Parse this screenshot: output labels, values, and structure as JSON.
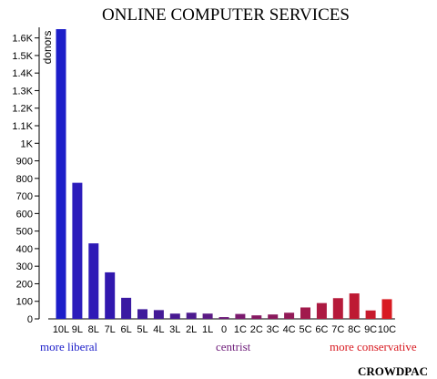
{
  "chart_data": {
    "type": "bar",
    "title": "ONLINE COMPUTER SERVICES",
    "ylabel": "donors",
    "xlabel": "",
    "ylim": [
      0,
      1650
    ],
    "y_ticks": [
      0,
      100,
      200,
      300,
      400,
      500,
      600,
      700,
      800,
      900,
      1000,
      1100,
      1200,
      1300,
      1400,
      1500,
      1600
    ],
    "y_tick_labels": [
      "0",
      "100",
      "200",
      "300",
      "400",
      "500",
      "600",
      "700",
      "800",
      "900",
      "1K",
      "1.1K",
      "1.2K",
      "1.3K",
      "1.4K",
      "1.5K",
      "1.6K"
    ],
    "categories": [
      "10L",
      "9L",
      "8L",
      "7L",
      "6L",
      "5L",
      "4L",
      "3L",
      "2L",
      "1L",
      "0",
      "1C",
      "2C",
      "3C",
      "4C",
      "5C",
      "6C",
      "7C",
      "8C",
      "9C",
      "10C"
    ],
    "values": [
      1650,
      775,
      430,
      265,
      120,
      55,
      50,
      30,
      35,
      30,
      10,
      28,
      20,
      25,
      35,
      65,
      90,
      118,
      145,
      48,
      112
    ],
    "colors": [
      "#1c1ec9",
      "#2c1cbb",
      "#2e1ab6",
      "#3118ae",
      "#3a1aa2",
      "#3f1b9b",
      "#441a96",
      "#481a92",
      "#4c1a8e",
      "#5b1a84",
      "#6c1a78",
      "#7a1a6e",
      "#861a62",
      "#8a1a5d",
      "#921a57",
      "#a11a4c",
      "#ac1a42",
      "#b61a3a",
      "#be1a33",
      "#c61a2c",
      "#d81a21"
    ],
    "grid": false,
    "annotations": [
      {
        "text": "more liberal",
        "color": "#1c1ec9"
      },
      {
        "text": "centrist",
        "color": "#6c1a78"
      },
      {
        "text": "more conservative",
        "color": "#d81a21"
      }
    ],
    "credit": "CROWDPAC"
  }
}
